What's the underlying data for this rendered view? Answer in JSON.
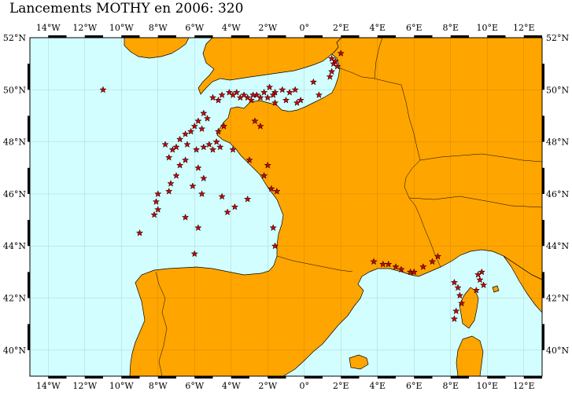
{
  "title": "Lancements MOTHY en 2006: 320",
  "map": {
    "lon_range": [
      -15,
      13
    ],
    "lat_range": [
      39,
      52
    ],
    "colors": {
      "sea": "#d2feff",
      "land": "#ffa500",
      "star": "#cc0000",
      "border": "#000000"
    },
    "lon_ticks": [
      {
        "lon": -14,
        "label": "14°W"
      },
      {
        "lon": -12,
        "label": "12°W"
      },
      {
        "lon": -10,
        "label": "10°W"
      },
      {
        "lon": -8,
        "label": "8°W"
      },
      {
        "lon": -6,
        "label": "6°W"
      },
      {
        "lon": -4,
        "label": "4°W"
      },
      {
        "lon": -2,
        "label": "2°W"
      },
      {
        "lon": 0,
        "label": "0°"
      },
      {
        "lon": 2,
        "label": "2°E"
      },
      {
        "lon": 4,
        "label": "4°E"
      },
      {
        "lon": 6,
        "label": "6°E"
      },
      {
        "lon": 8,
        "label": "8°E"
      },
      {
        "lon": 10,
        "label": "10°E"
      },
      {
        "lon": 12,
        "label": "12°E"
      }
    ],
    "lat_ticks": [
      {
        "lat": 52,
        "label": "52°N"
      },
      {
        "lat": 50,
        "label": "50°N"
      },
      {
        "lat": 48,
        "label": "48°N"
      },
      {
        "lat": 46,
        "label": "46°N"
      },
      {
        "lat": 44,
        "label": "44°N"
      },
      {
        "lat": 42,
        "label": "42°N"
      },
      {
        "lat": 40,
        "label": "40°N"
      }
    ],
    "launch_sites": [
      [
        -11.0,
        50.0
      ],
      [
        1.5,
        51.2
      ],
      [
        1.6,
        51.0
      ],
      [
        1.8,
        50.9
      ],
      [
        1.5,
        50.7
      ],
      [
        1.4,
        50.5
      ],
      [
        1.7,
        51.1
      ],
      [
        0.5,
        50.3
      ],
      [
        -0.5,
        50.0
      ],
      [
        -0.8,
        49.9
      ],
      [
        -1.2,
        50.0
      ],
      [
        -1.6,
        49.9
      ],
      [
        -1.7,
        49.8
      ],
      [
        -1.9,
        50.1
      ],
      [
        -2.2,
        49.9
      ],
      [
        -2.4,
        49.7
      ],
      [
        -2.6,
        49.8
      ],
      [
        -2.8,
        49.8
      ],
      [
        -2.9,
        49.6
      ],
      [
        -3.1,
        49.7
      ],
      [
        -3.3,
        49.8
      ],
      [
        -3.5,
        49.7
      ],
      [
        -3.7,
        49.9
      ],
      [
        -3.9,
        49.8
      ],
      [
        -4.1,
        49.9
      ],
      [
        -4.5,
        49.8
      ],
      [
        -4.7,
        49.6
      ],
      [
        -5.0,
        49.7
      ],
      [
        -2.0,
        49.7
      ],
      [
        -1.6,
        49.5
      ],
      [
        -1.0,
        49.6
      ],
      [
        -0.4,
        49.5
      ],
      [
        -0.2,
        49.6
      ],
      [
        0.8,
        49.8
      ],
      [
        2.0,
        51.4
      ],
      [
        -5.5,
        49.1
      ],
      [
        -5.8,
        48.8
      ],
      [
        -5.6,
        48.5
      ],
      [
        -6.0,
        48.6
      ],
      [
        -6.2,
        48.4
      ],
      [
        -6.5,
        48.3
      ],
      [
        -6.8,
        48.1
      ],
      [
        -7.0,
        47.8
      ],
      [
        -7.2,
        47.7
      ],
      [
        -6.4,
        47.9
      ],
      [
        -5.9,
        47.7
      ],
      [
        -5.5,
        47.8
      ],
      [
        -5.2,
        47.9
      ],
      [
        -4.8,
        48.0
      ],
      [
        -5.0,
        47.7
      ],
      [
        -4.6,
        47.8
      ],
      [
        -4.7,
        48.4
      ],
      [
        -5.3,
        48.9
      ],
      [
        -4.4,
        48.6
      ],
      [
        -6.5,
        47.3
      ],
      [
        -6.8,
        47.1
      ],
      [
        -5.8,
        47.0
      ],
      [
        -5.5,
        46.6
      ],
      [
        -6.1,
        46.3
      ],
      [
        -7.0,
        46.7
      ],
      [
        -7.3,
        46.4
      ],
      [
        -7.4,
        46.1
      ],
      [
        -8.0,
        46.0
      ],
      [
        -8.1,
        45.7
      ],
      [
        -8.0,
        45.4
      ],
      [
        -8.2,
        45.2
      ],
      [
        -7.4,
        47.4
      ],
      [
        -7.6,
        47.9
      ],
      [
        -5.6,
        46.0
      ],
      [
        -4.5,
        45.9
      ],
      [
        -3.8,
        45.5
      ],
      [
        -4.2,
        45.3
      ],
      [
        -6.5,
        45.1
      ],
      [
        -5.8,
        44.7
      ],
      [
        -3.1,
        45.8
      ],
      [
        -1.8,
        46.2
      ],
      [
        -1.5,
        46.1
      ],
      [
        -2.2,
        46.7
      ],
      [
        -2.0,
        47.1
      ],
      [
        -3.0,
        47.3
      ],
      [
        -3.9,
        47.7
      ],
      [
        -2.7,
        48.8
      ],
      [
        -2.4,
        48.6
      ],
      [
        -1.7,
        44.7
      ],
      [
        -1.6,
        44.0
      ],
      [
        -6.0,
        43.7
      ],
      [
        -9.0,
        44.5
      ],
      [
        3.8,
        43.4
      ],
      [
        4.3,
        43.3
      ],
      [
        4.6,
        43.3
      ],
      [
        5.0,
        43.2
      ],
      [
        5.3,
        43.1
      ],
      [
        5.8,
        43.0
      ],
      [
        6.0,
        43.0
      ],
      [
        6.5,
        43.2
      ],
      [
        7.0,
        43.4
      ],
      [
        7.3,
        43.6
      ],
      [
        8.2,
        42.6
      ],
      [
        8.4,
        42.4
      ],
      [
        8.5,
        42.1
      ],
      [
        8.6,
        41.8
      ],
      [
        8.3,
        41.5
      ],
      [
        8.2,
        41.2
      ],
      [
        9.5,
        42.9
      ],
      [
        9.6,
        42.7
      ],
      [
        9.8,
        42.5
      ],
      [
        9.4,
        42.3
      ],
      [
        9.7,
        43.0
      ]
    ]
  }
}
